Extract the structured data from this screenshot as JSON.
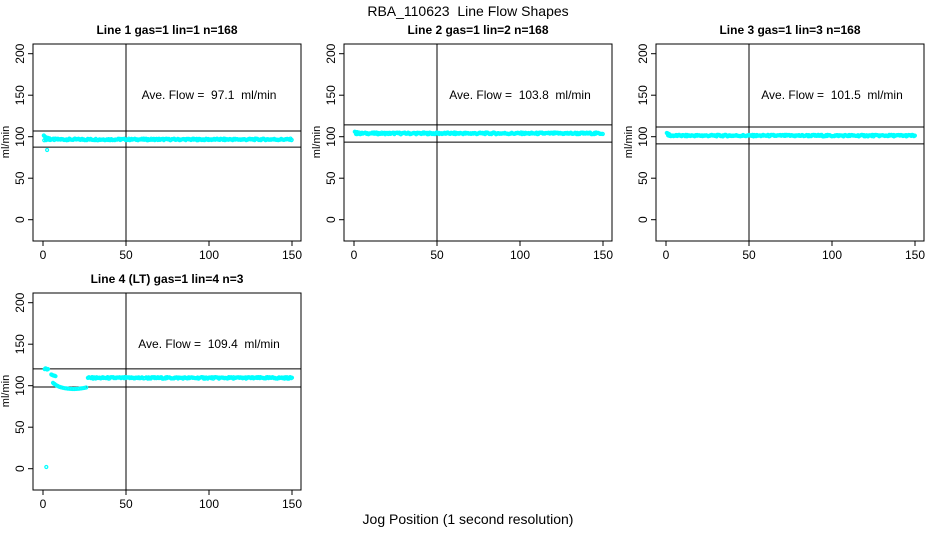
{
  "chart_data": {
    "type": "scatter",
    "title": "RBA_110623  Line Flow Shapes",
    "xlabel": "Jog Position (1 second resolution)",
    "ylabel": "ml/min",
    "x_ticks": [
      0,
      50,
      100,
      150
    ],
    "y_ticks": [
      0,
      50,
      100,
      150,
      200
    ],
    "xlim": [
      -6,
      155.5
    ],
    "ylim": [
      -26,
      212
    ],
    "grid": false,
    "vline_x": 50,
    "point_color": "#00ffff",
    "line_color": "#000000",
    "background_color": "#ffffff",
    "panels": [
      {
        "title": "Line 1 gas=1 lin=1 n=168",
        "annotation": "Ave. Flow =  97.1  ml/min",
        "ave_flow_ml_min": 97.1,
        "gas": 1,
        "lin": 1,
        "n": 168,
        "hlines": [
          106.8,
          87.4
        ],
        "band": {
          "x_start": 1,
          "x_end": 150,
          "y_mean": 96.7,
          "spread": 1.0
        },
        "extra_points": [
          [
            0.5,
            101.5
          ],
          [
            1,
            100.5
          ],
          [
            1.5,
            99.5
          ],
          [
            2,
            99
          ],
          [
            3,
            98.5
          ],
          [
            4,
            98
          ],
          [
            2.5,
            84
          ]
        ]
      },
      {
        "title": "Line 2 gas=1 lin=2 n=168",
        "annotation": "Ave. Flow =  103.8  ml/min",
        "ave_flow_ml_min": 103.8,
        "gas": 1,
        "lin": 2,
        "n": 168,
        "hlines": [
          114.2,
          93.4
        ],
        "band": {
          "x_start": 1,
          "x_end": 150,
          "y_mean": 104.0,
          "spread": 1.1
        },
        "extra_points": [
          [
            0.5,
            106
          ],
          [
            1,
            105.5
          ],
          [
            1.5,
            105
          ],
          [
            2,
            105.5
          ]
        ]
      },
      {
        "title": "Line 3 gas=1 lin=3 n=168",
        "annotation": "Ave. Flow =  101.5  ml/min",
        "ave_flow_ml_min": 101.5,
        "gas": 1,
        "lin": 3,
        "n": 168,
        "hlines": [
          111.7,
          91.4
        ],
        "band": {
          "x_start": 1,
          "x_end": 150,
          "y_mean": 101.3,
          "spread": 1.0
        },
        "extra_points": [
          [
            0.5,
            104.5
          ],
          [
            1,
            104
          ],
          [
            1.5,
            103.5
          ],
          [
            2,
            103
          ]
        ]
      },
      {
        "title": "Line 4 (LT) gas=1 lin=4 n=3",
        "annotation": "Ave. Flow =  109.4  ml/min",
        "ave_flow_ml_min": 109.4,
        "gas": 1,
        "lin": 4,
        "n": 3,
        "hlines": [
          120.3,
          98.4
        ],
        "band": {
          "x_start": 27,
          "x_end": 150,
          "y_mean": 109.4,
          "spread": 1.0
        },
        "extra_points": [
          [
            1,
            120
          ],
          [
            1.5,
            121
          ],
          [
            2,
            120.5
          ],
          [
            2.5,
            119.5
          ],
          [
            3,
            120
          ],
          [
            5,
            113.5
          ],
          [
            5.5,
            113
          ],
          [
            6,
            112.5
          ],
          [
            6.5,
            112
          ],
          [
            7,
            112
          ],
          [
            7.5,
            111.5
          ],
          [
            6,
            103.5
          ],
          [
            6.5,
            102.5
          ],
          [
            7,
            102
          ],
          [
            7.5,
            101
          ],
          [
            8,
            100.5
          ],
          [
            8.5,
            100
          ],
          [
            9,
            99.5
          ],
          [
            10,
            98.5
          ],
          [
            11,
            98
          ],
          [
            12,
            97.5
          ],
          [
            13,
            97
          ],
          [
            14,
            96.8
          ],
          [
            15,
            96.5
          ],
          [
            16,
            96.3
          ],
          [
            17,
            96.2
          ],
          [
            18,
            96
          ],
          [
            19,
            96
          ],
          [
            20,
            96.2
          ],
          [
            21,
            96.3
          ],
          [
            22,
            96.5
          ],
          [
            23,
            96.8
          ],
          [
            24,
            97
          ],
          [
            25,
            97.3
          ],
          [
            26,
            97.8
          ],
          [
            2,
            2
          ]
        ]
      }
    ]
  }
}
